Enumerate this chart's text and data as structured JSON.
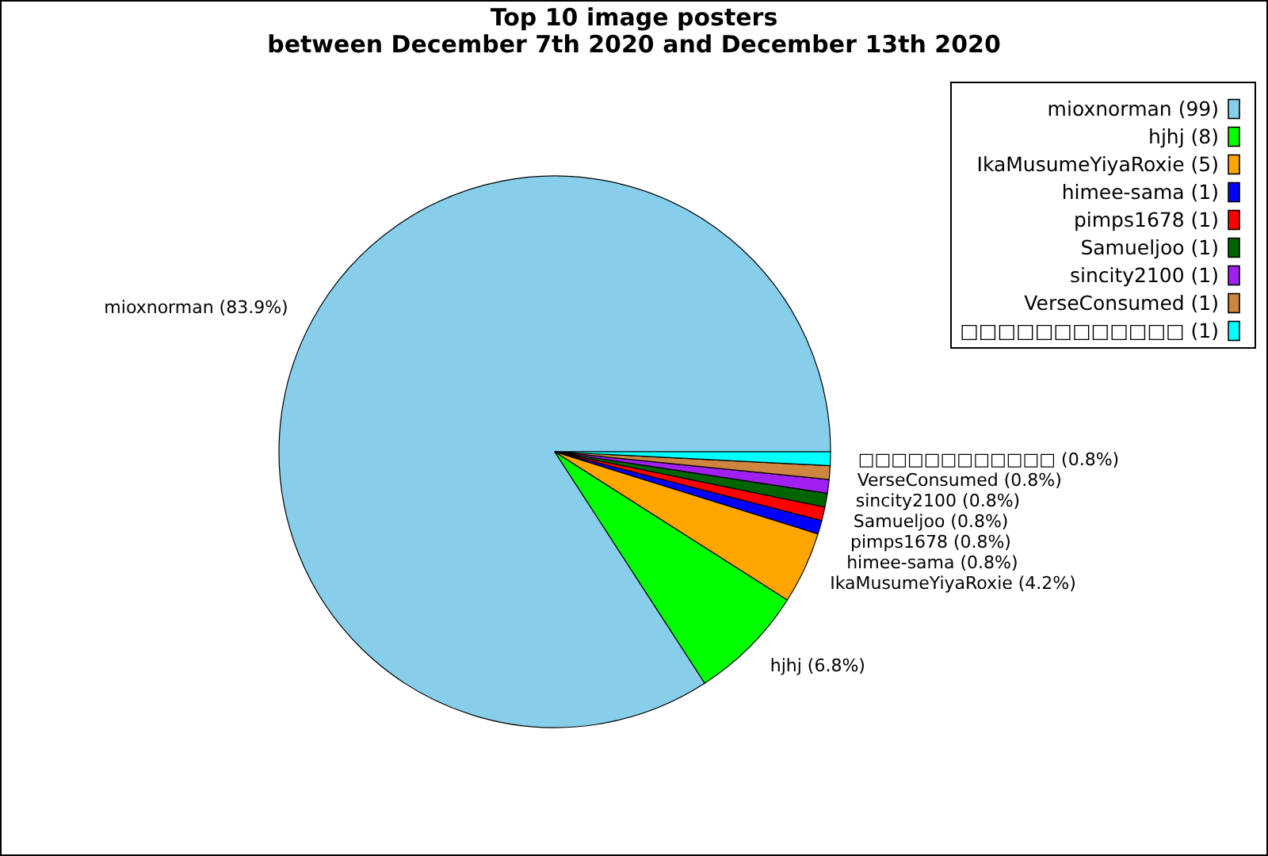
{
  "chart_data": {
    "type": "pie",
    "title": "Top 10 image posters\nbetween December 7th 2020 and December 13th 2020",
    "categories": [
      "mioxnorman (99)",
      "hjhj (8)",
      "IkaMusumeYiyaRoxie (5)",
      "himee-sama (1)",
      "pimps1678 (1)",
      "Samueljoo (1)",
      "sincity2100 (1)",
      "VerseConsumed (1)",
      "□□□□□□□□□□□□ (1)"
    ],
    "values": [
      83.9,
      6.8,
      4.2,
      0.8,
      0.8,
      0.8,
      0.8,
      0.8,
      0.8
    ],
    "value_labels": [
      "mioxnorman (83.9%)",
      "hjhj (6.8%)",
      "IkaMusumeYiyaRoxie (4.2%)",
      "himee-sama (0.8%)",
      "pimps1678 (0.8%)",
      "Samueljoo (0.8%)",
      "sincity2100 (0.8%)",
      "VerseConsumed (0.8%)",
      "□□□□□□□□□□□□ (0.8%)"
    ],
    "colors": [
      "#87ceeb",
      "#00ff00",
      "#ffa500",
      "#0000ff",
      "#ff0000",
      "#006400",
      "#a020f0",
      "#cd853f",
      "#00ffff"
    ],
    "legend": "top right"
  }
}
